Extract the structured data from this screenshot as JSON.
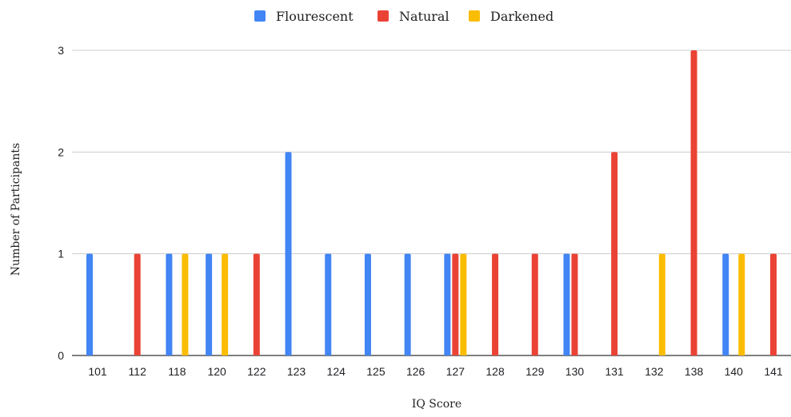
{
  "chart_data": {
    "type": "bar",
    "title": "",
    "xlabel": "IQ Score",
    "ylabel": "Number of Participants",
    "categories": [
      "101",
      "112",
      "118",
      "120",
      "122",
      "123",
      "124",
      "125",
      "126",
      "127",
      "128",
      "129",
      "130",
      "131",
      "132",
      "138",
      "140",
      "141"
    ],
    "series": [
      {
        "name": "Flourescent",
        "color": "#4285F4",
        "values": [
          1,
          0,
          1,
          1,
          0,
          2,
          1,
          1,
          1,
          1,
          0,
          0,
          1,
          0,
          0,
          0,
          1,
          0
        ]
      },
      {
        "name": "Natural",
        "color": "#EA4335",
        "values": [
          0,
          1,
          0,
          0,
          1,
          0,
          0,
          0,
          0,
          1,
          1,
          1,
          1,
          2,
          0,
          3,
          0,
          1
        ]
      },
      {
        "name": "Darkened",
        "color": "#FBBC04",
        "values": [
          0,
          0,
          1,
          1,
          0,
          0,
          0,
          0,
          0,
          1,
          0,
          0,
          0,
          0,
          1,
          0,
          1,
          0
        ]
      }
    ],
    "ylim": [
      0,
      3
    ],
    "yticks": [
      "0",
      "1",
      "2",
      "3"
    ],
    "grid": true,
    "legend_position": "top-center"
  }
}
